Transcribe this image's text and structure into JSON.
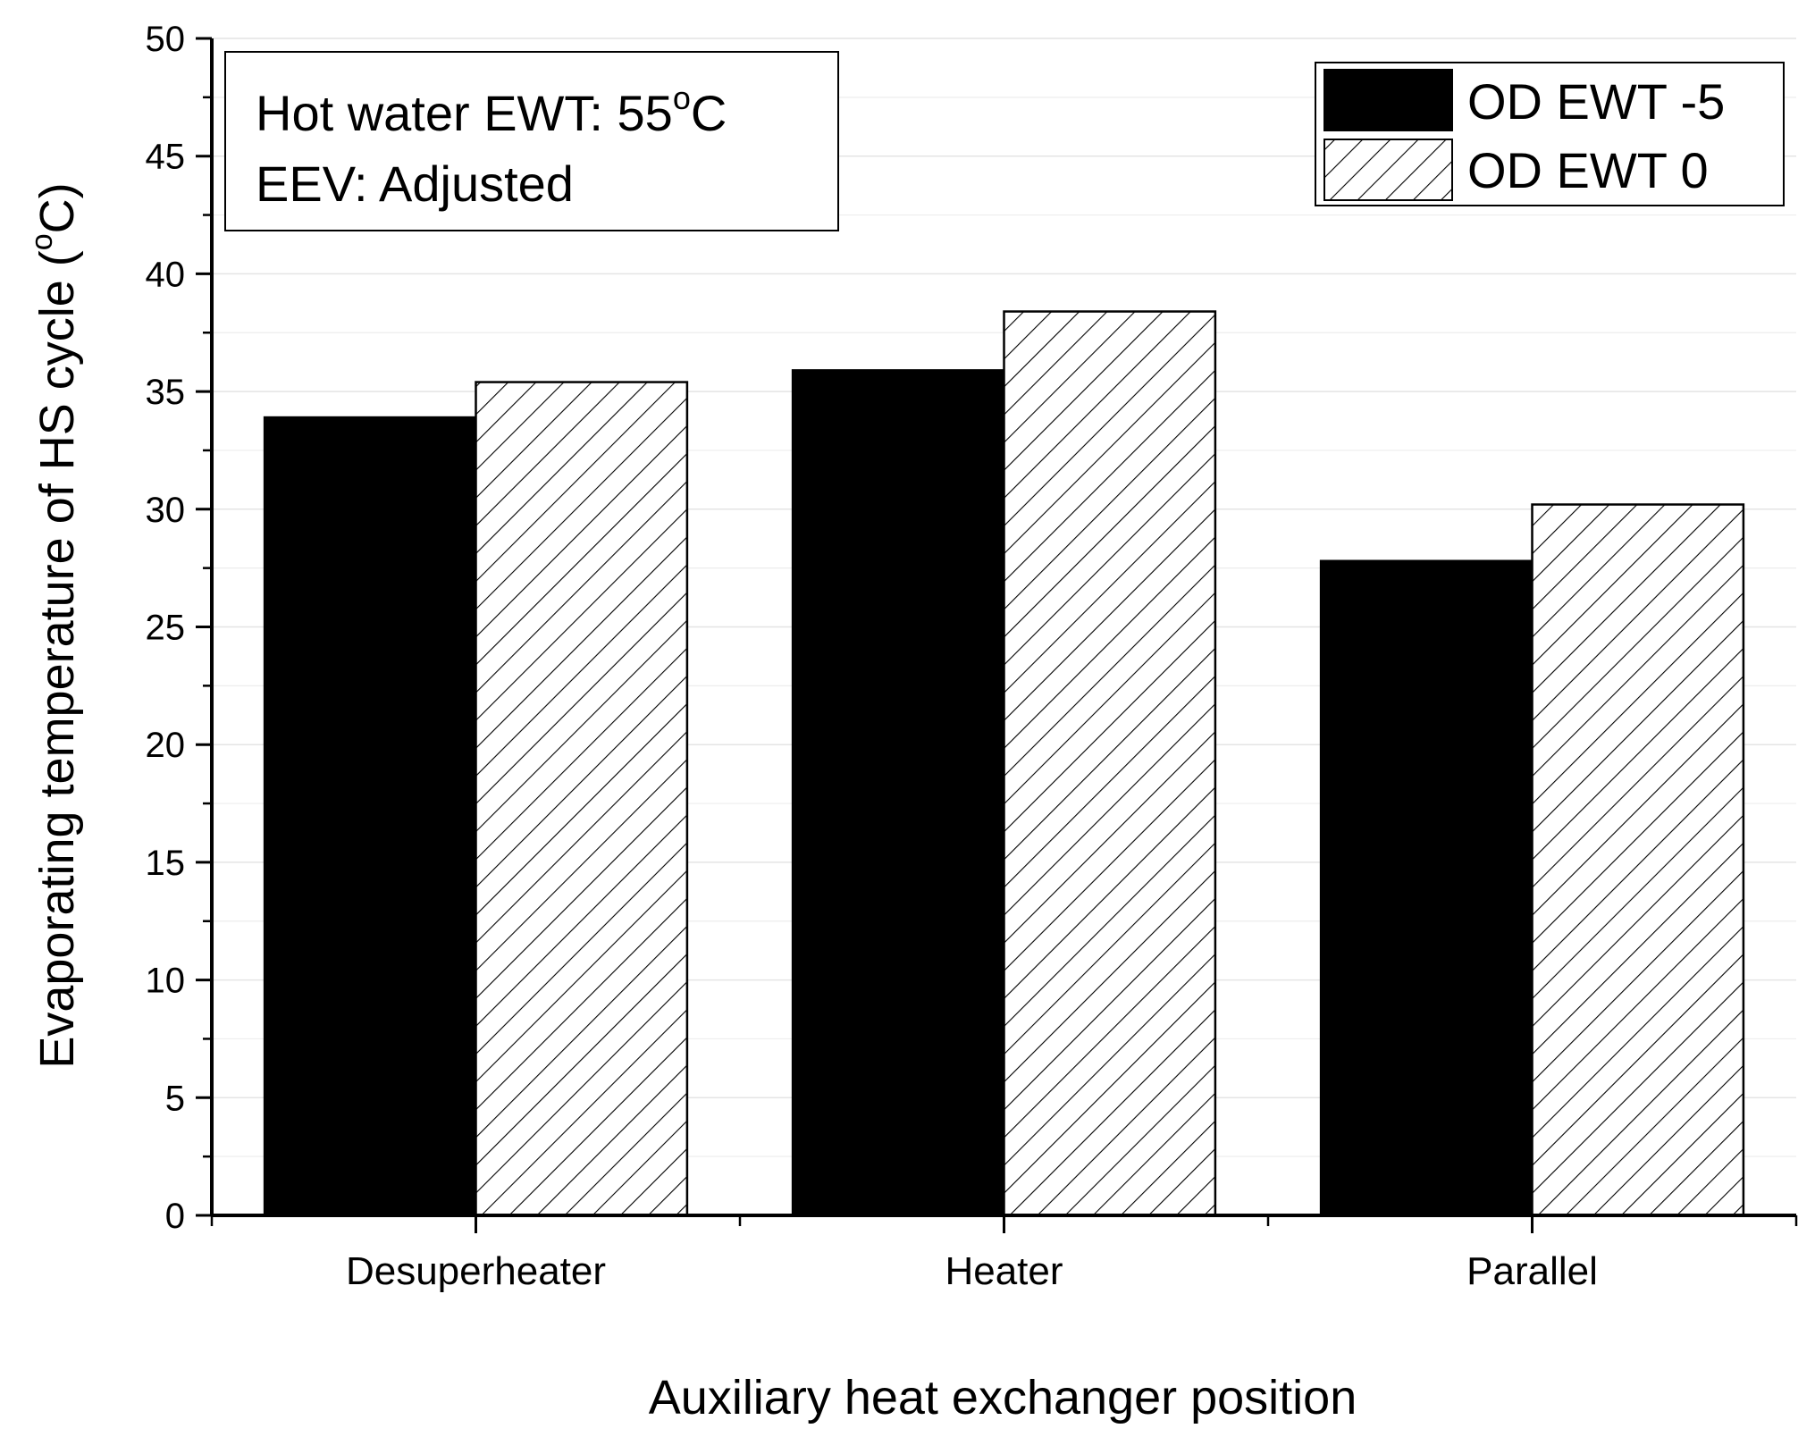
{
  "chart_data": {
    "type": "bar",
    "title": "",
    "xlabel": "Auxiliary heat exchanger position",
    "ylabel_parts": {
      "before": "Evaporating temperature of HS cycle (",
      "sup": "o",
      "after": "C)"
    },
    "categories": [
      "Desuperheater",
      "Heater",
      "Parallel"
    ],
    "series": [
      {
        "name": "OD EWT -5",
        "values": [
          33.9,
          35.9,
          27.8
        ],
        "fill": "solid",
        "color": "#000000"
      },
      {
        "name": "OD EWT 0",
        "values": [
          35.4,
          38.4,
          30.2
        ],
        "fill": "hatched",
        "color": "#ffffff"
      }
    ],
    "ylim": [
      0,
      50
    ],
    "yticks": [
      0,
      5,
      10,
      15,
      20,
      25,
      30,
      35,
      40,
      45,
      50
    ],
    "grid": true,
    "legend_position": "top-right",
    "annotation": {
      "line1_parts": {
        "before": "Hot water EWT: 55",
        "sup": "o",
        "after": "C"
      },
      "line2": "EEV: Adjusted"
    }
  }
}
